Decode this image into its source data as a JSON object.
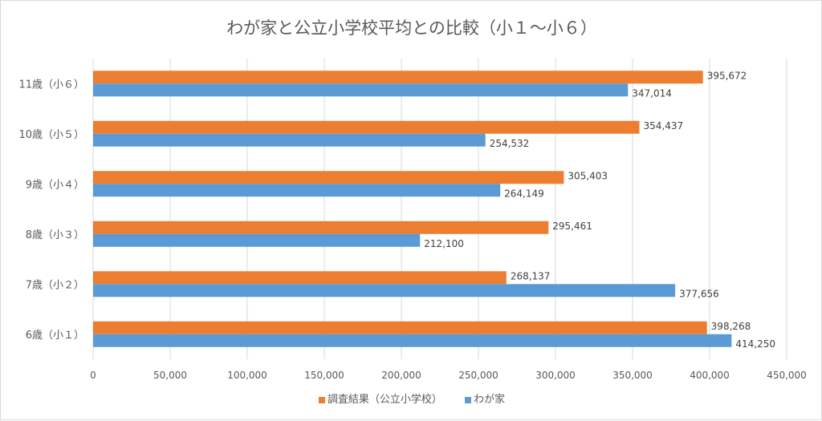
{
  "chart_data": {
    "type": "bar",
    "orientation": "horizontal",
    "title": "わが家と公立小学校平均との比較（小１～小６）",
    "categories": [
      "6歳（小１）",
      "7歳（小２）",
      "8歳（小３）",
      "9歳（小４）",
      "10歳（小５）",
      "11歳（小６）"
    ],
    "series": [
      {
        "name": "調査結果（公立小学校）",
        "color": "#ED7D31",
        "values": [
          398268,
          268137,
          295461,
          305403,
          354437,
          395672
        ]
      },
      {
        "name": "わが家",
        "color": "#5B9BD5",
        "values": [
          414250,
          377656,
          212100,
          264149,
          254532,
          347014
        ]
      }
    ],
    "xlim": [
      0,
      450000
    ],
    "xticks": [
      "0",
      "50,000",
      "100,000",
      "150,000",
      "200,000",
      "250,000",
      "300,000",
      "350,000",
      "400,000",
      "450,000"
    ],
    "data_labels": true,
    "grid": "vertical",
    "legend": "bottom"
  }
}
